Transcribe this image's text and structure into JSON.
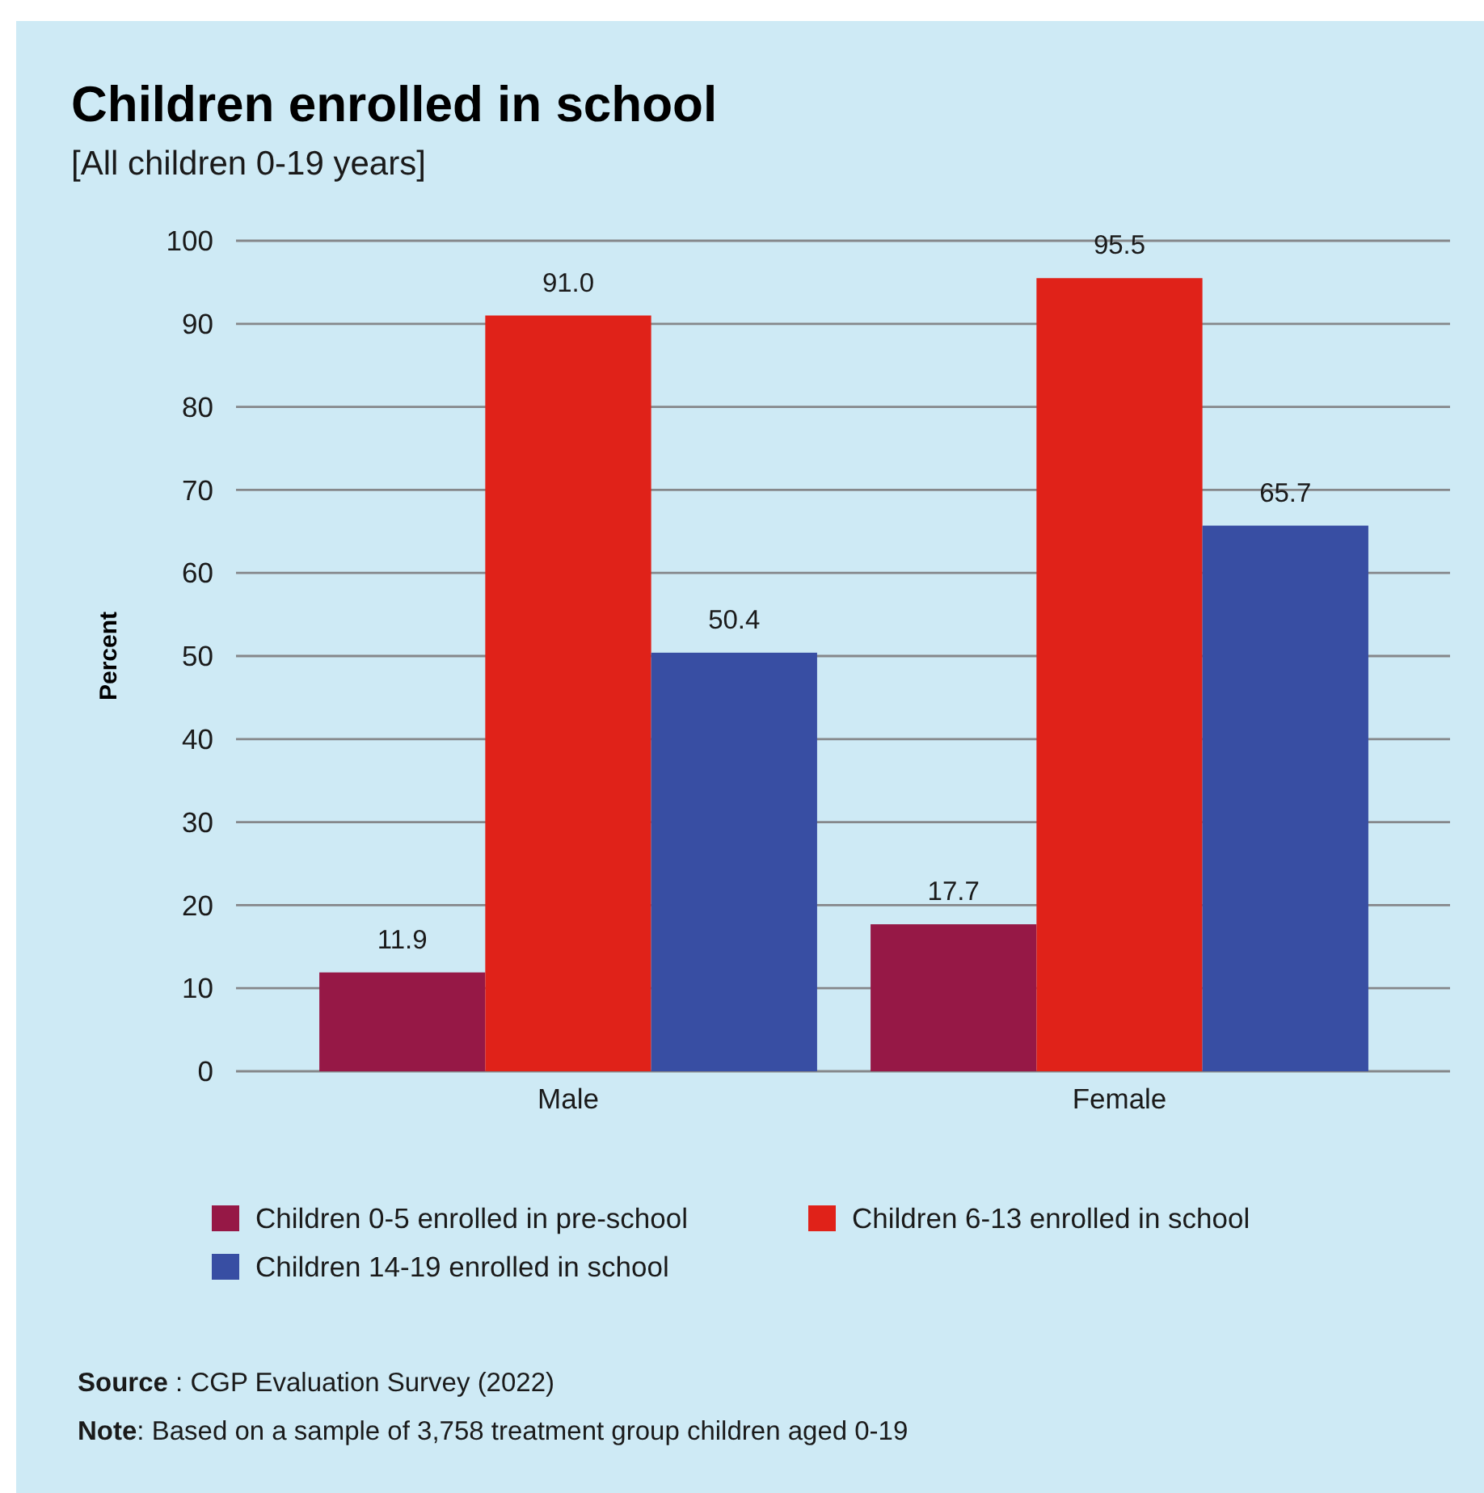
{
  "chart_data": {
    "type": "bar",
    "title": "Children enrolled in school",
    "subtitle": "[All children 0-19 years]",
    "ylabel": "Percent",
    "categories": [
      "Male",
      "Female"
    ],
    "series": [
      {
        "name": "Children 0-5 enrolled in pre-school",
        "color": "#961846",
        "values": [
          11.9,
          17.7
        ],
        "value_labels": [
          "11.9",
          "17.7"
        ]
      },
      {
        "name": "Children 6-13 enrolled in school",
        "color": "#e02219",
        "values": [
          91.0,
          95.5
        ],
        "value_labels": [
          "91.0",
          "95.5"
        ]
      },
      {
        "name": "Children 14-19 enrolled in school",
        "color": "#384ea3",
        "values": [
          50.4,
          65.7
        ],
        "value_labels": [
          "50.4",
          "65.7"
        ]
      }
    ],
    "ylim": [
      0,
      100
    ],
    "yticks": [
      0,
      10,
      20,
      30,
      40,
      50,
      60,
      70,
      80,
      90,
      100
    ],
    "grid": "y",
    "legend": "bottom",
    "annotations": [
      "Source : CGP Evaluation Survey (2022)",
      "Note: Based on a sample of 3,758 treatment group children aged 0-19"
    ]
  }
}
